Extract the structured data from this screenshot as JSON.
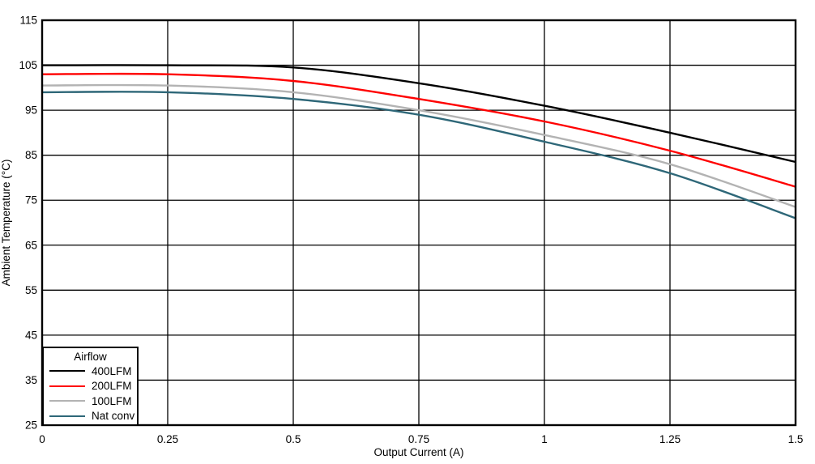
{
  "figure": {
    "background": "#ffffff",
    "grid_color": "#000000",
    "border_color": "#000000"
  },
  "chart_data": {
    "type": "line",
    "title": "",
    "xlabel": "Output Current (A)",
    "ylabel": "Ambient Temperature (°C)",
    "xlim": [
      0,
      1.5
    ],
    "ylim": [
      25,
      115
    ],
    "grid": true,
    "legend": {
      "title": "Airflow",
      "position": "bottom-left"
    },
    "xticks": [
      0,
      0.25,
      0.5,
      0.75,
      1,
      1.25,
      1.5
    ],
    "xtick_labels": [
      "0",
      "0.25",
      "0.5",
      "0.75",
      "1",
      "1.25",
      "1.5"
    ],
    "yticks": [
      115,
      105,
      95,
      85,
      75,
      65,
      55,
      45,
      35,
      25
    ],
    "ytick_labels": [
      "115",
      "105",
      "95",
      "85",
      "75",
      "65",
      "55",
      "45",
      "35",
      "25"
    ],
    "x": [
      0,
      0.25,
      0.5,
      0.75,
      1,
      1.25,
      1.5
    ],
    "series": [
      {
        "name": "400LFM",
        "color": "#000000",
        "values": [
          105,
          105,
          104.5,
          101,
          96,
          90,
          83.5
        ]
      },
      {
        "name": "200LFM",
        "color": "#ff0000",
        "values": [
          103,
          103,
          101.5,
          97.5,
          92.5,
          86,
          78
        ]
      },
      {
        "name": "100LFM",
        "color": "#b3b3b3",
        "values": [
          100.5,
          100.5,
          99,
          95,
          89.5,
          83,
          73.5
        ]
      },
      {
        "name": "Nat conv",
        "color": "#2e6778",
        "values": [
          99,
          99,
          97.5,
          94,
          88,
          81,
          71
        ]
      }
    ]
  }
}
